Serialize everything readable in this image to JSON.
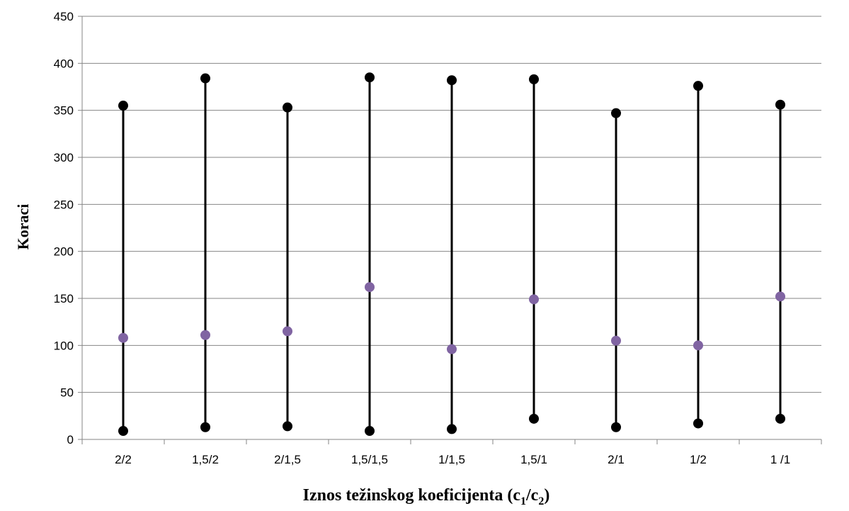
{
  "chart_data": {
    "type": "scatter",
    "xlabel": "Iznos težinskog koeficijenta",
    "xlabel_formula": {
      "open": " (c",
      "sub1": "1",
      "sep": "/c",
      "sub2": "2",
      "close": ")"
    },
    "ylabel": "Koraci",
    "ylim": [
      0,
      450
    ],
    "yticks": [
      0,
      50,
      100,
      150,
      200,
      250,
      300,
      350,
      400,
      450
    ],
    "grid": "horizontal",
    "legend": "none",
    "categories": [
      "2/2",
      "1,5/2",
      "2/1,5",
      "1,5/1,5",
      "1/1,5",
      "1,5/1",
      "2/1",
      "1/2",
      "1 /1"
    ],
    "series": [
      {
        "role": "max",
        "color": "#000000",
        "values": [
          355,
          384,
          353,
          385,
          382,
          383,
          347,
          376,
          356
        ]
      },
      {
        "role": "min",
        "color": "#000000",
        "values": [
          9,
          13,
          14,
          9,
          11,
          22,
          13,
          17,
          22
        ]
      },
      {
        "role": "mean",
        "color": "#8064a2",
        "values": [
          108,
          111,
          115,
          162,
          96,
          149,
          105,
          100,
          152
        ]
      }
    ]
  }
}
